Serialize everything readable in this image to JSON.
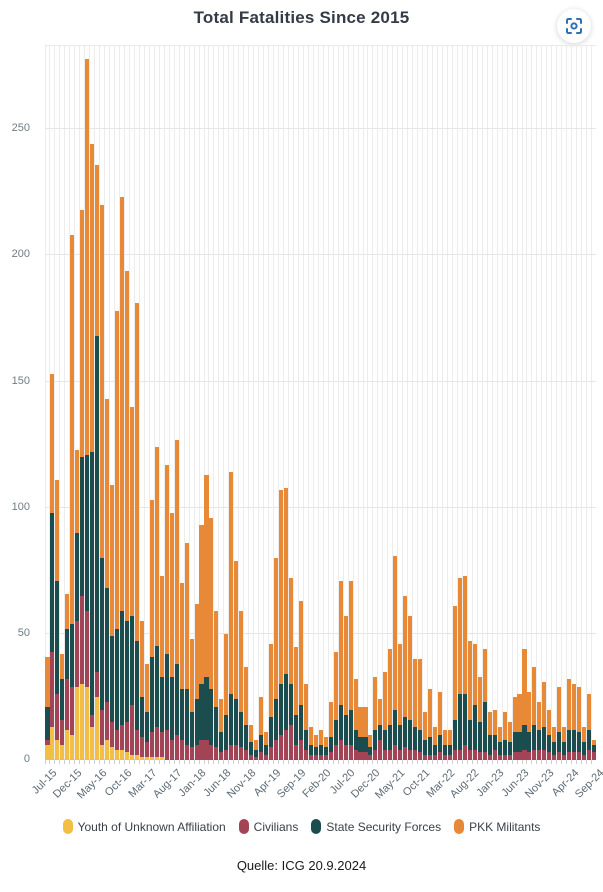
{
  "title": "Total Fatalities Since 2015",
  "source": "Quelle: ICG 20.9.2024",
  "toolbar": {
    "zoom_icon_color": "#2e6fb7"
  },
  "axis": {
    "y_ticks": [
      0,
      50,
      100,
      150,
      200,
      250
    ],
    "x_tick_labels": [
      "Jul-15",
      "Dec-15",
      "May-16",
      "Oct-16",
      "Mar-17",
      "Aug-17",
      "Jan-18",
      "Jun-18",
      "Nov-18",
      "Apr-19",
      "Sep-19",
      "Feb-20",
      "Jul-20",
      "Dec-20",
      "May-21",
      "Oct-21",
      "Mar-22",
      "Aug-22",
      "Jan-23",
      "Jun-23",
      "Nov-23",
      "Apr-24",
      "Sep-24"
    ]
  },
  "legend": [
    {
      "label": "Youth of Unknown Affiliation",
      "color": "#f2be44"
    },
    {
      "label": "Civilians",
      "color": "#a34456"
    },
    {
      "label": "State Security Forces",
      "color": "#1c4d4e"
    },
    {
      "label": "PKK Militants",
      "color": "#e78936"
    }
  ],
  "chart_data": {
    "type": "bar",
    "stacked": true,
    "title": "Total Fatalities Since 2015",
    "xlabel": "",
    "ylabel": "",
    "ylim": [
      0,
      283
    ],
    "grid": true,
    "legend_position": "bottom",
    "x_tick_every": 5,
    "categories": [
      "Jul-15",
      "Aug-15",
      "Sep-15",
      "Oct-15",
      "Nov-15",
      "Dec-15",
      "Jan-16",
      "Feb-16",
      "Mar-16",
      "Apr-16",
      "May-16",
      "Jun-16",
      "Jul-16",
      "Aug-16",
      "Sep-16",
      "Oct-16",
      "Nov-16",
      "Dec-16",
      "Jan-17",
      "Feb-17",
      "Mar-17",
      "Apr-17",
      "May-17",
      "Jun-17",
      "Jul-17",
      "Aug-17",
      "Sep-17",
      "Oct-17",
      "Nov-17",
      "Dec-17",
      "Jan-18",
      "Feb-18",
      "Mar-18",
      "Apr-18",
      "May-18",
      "Jun-18",
      "Jul-18",
      "Aug-18",
      "Sep-18",
      "Oct-18",
      "Nov-18",
      "Dec-18",
      "Jan-19",
      "Feb-19",
      "Mar-19",
      "Apr-19",
      "May-19",
      "Jun-19",
      "Jul-19",
      "Aug-19",
      "Sep-19",
      "Oct-19",
      "Nov-19",
      "Dec-19",
      "Jan-20",
      "Feb-20",
      "Mar-20",
      "Apr-20",
      "May-20",
      "Jun-20",
      "Jul-20",
      "Aug-20",
      "Sep-20",
      "Oct-20",
      "Nov-20",
      "Dec-20",
      "Jan-21",
      "Feb-21",
      "Mar-21",
      "Apr-21",
      "May-21",
      "Jun-21",
      "Jul-21",
      "Aug-21",
      "Sep-21",
      "Oct-21",
      "Nov-21",
      "Dec-21",
      "Jan-22",
      "Feb-22",
      "Mar-22",
      "Apr-22",
      "May-22",
      "Jun-22",
      "Jul-22",
      "Aug-22",
      "Sep-22",
      "Oct-22",
      "Nov-22",
      "Dec-22",
      "Jan-23",
      "Feb-23",
      "Mar-23",
      "Apr-23",
      "May-23",
      "Jun-23",
      "Jul-23",
      "Aug-23",
      "Sep-23",
      "Oct-23",
      "Nov-23",
      "Dec-23",
      "Jan-24",
      "Feb-24",
      "Mar-24",
      "Apr-24",
      "May-24",
      "Jun-24",
      "Jul-24",
      "Aug-24",
      "Sep-24"
    ],
    "series": [
      {
        "name": "Youth of Unknown Affiliation",
        "color": "#f2be44",
        "values": [
          6,
          13,
          8,
          6,
          12,
          10,
          29,
          30,
          29,
          13,
          25,
          6,
          8,
          5,
          4,
          4,
          3,
          2,
          2,
          1,
          1,
          1,
          1,
          1,
          0,
          0,
          0,
          0,
          0,
          0,
          0,
          0,
          0,
          0,
          0,
          0,
          0,
          0,
          0,
          0,
          0,
          0,
          0,
          0,
          0,
          0,
          0,
          0,
          0,
          0,
          0,
          0,
          0,
          0,
          0,
          0,
          0,
          0,
          0,
          0,
          0,
          0,
          0,
          0,
          0,
          0,
          0,
          0,
          0,
          0,
          0,
          0,
          0,
          0,
          0,
          0,
          0,
          0,
          0,
          0,
          0,
          0,
          0,
          0,
          0,
          0,
          0,
          0,
          0,
          0,
          0,
          0,
          0,
          0,
          0,
          0,
          0,
          0,
          0,
          0,
          0,
          0,
          0,
          0,
          0,
          0,
          0,
          0,
          0,
          0,
          0
        ]
      },
      {
        "name": "Civilians",
        "color": "#a34456",
        "values": [
          2,
          30,
          18,
          10,
          20,
          19,
          26,
          35,
          30,
          5,
          10,
          14,
          15,
          10,
          8,
          10,
          12,
          20,
          10,
          8,
          6,
          10,
          12,
          10,
          12,
          8,
          10,
          8,
          6,
          5,
          6,
          8,
          8,
          6,
          5,
          3,
          4,
          6,
          6,
          5,
          4,
          2,
          1,
          3,
          2,
          5,
          8,
          10,
          12,
          14,
          6,
          8,
          4,
          2,
          2,
          2,
          2,
          3,
          6,
          8,
          6,
          6,
          4,
          3,
          3,
          2,
          4,
          8,
          4,
          4,
          6,
          4,
          5,
          4,
          4,
          3,
          2,
          2,
          2,
          3,
          2,
          2,
          4,
          4,
          6,
          4,
          4,
          3,
          3,
          2,
          4,
          2,
          2,
          2,
          3,
          3,
          4,
          3,
          4,
          4,
          4,
          3,
          2,
          3,
          2,
          3,
          3,
          3,
          2,
          4,
          3
        ]
      },
      {
        "name": "State Security Forces",
        "color": "#1c4d4e",
        "values": [
          13,
          55,
          45,
          16,
          20,
          25,
          35,
          55,
          62,
          104,
          133,
          60,
          45,
          34,
          40,
          45,
          40,
          35,
          35,
          16,
          12,
          30,
          32,
          22,
          30,
          25,
          28,
          20,
          22,
          14,
          18,
          22,
          25,
          22,
          16,
          8,
          14,
          20,
          18,
          14,
          10,
          5,
          3,
          7,
          4,
          12,
          16,
          20,
          22,
          16,
          12,
          14,
          8,
          4,
          3,
          4,
          3,
          6,
          10,
          14,
          12,
          14,
          8,
          6,
          6,
          3,
          8,
          6,
          8,
          10,
          14,
          10,
          12,
          12,
          9,
          9,
          6,
          7,
          4,
          7,
          4,
          4,
          12,
          22,
          20,
          12,
          18,
          12,
          20,
          8,
          6,
          5,
          6,
          5,
          8,
          8,
          10,
          8,
          10,
          8,
          9,
          7,
          5,
          8,
          5,
          9,
          9,
          8,
          5,
          8,
          3
        ]
      },
      {
        "name": "PKK Militants",
        "color": "#e78936",
        "values": [
          20,
          55,
          40,
          10,
          14,
          154,
          33,
          98,
          157,
          122,
          68,
          140,
          75,
          60,
          126,
          164,
          139,
          83,
          134,
          30,
          19,
          62,
          79,
          40,
          75,
          65,
          89,
          42,
          58,
          29,
          38,
          63,
          80,
          68,
          38,
          13,
          32,
          88,
          55,
          40,
          23,
          7,
          4,
          15,
          5,
          29,
          56,
          77,
          74,
          42,
          27,
          41,
          18,
          7,
          5,
          6,
          4,
          14,
          27,
          49,
          39,
          51,
          20,
          12,
          12,
          5,
          21,
          10,
          23,
          30,
          61,
          32,
          48,
          41,
          27,
          28,
          11,
          19,
          7,
          17,
          6,
          6,
          45,
          46,
          47,
          31,
          24,
          18,
          21,
          9,
          10,
          6,
          11,
          8,
          14,
          15,
          30,
          16,
          23,
          11,
          18,
          10,
          6,
          18,
          6,
          20,
          18,
          18,
          6,
          14,
          2
        ]
      }
    ]
  }
}
